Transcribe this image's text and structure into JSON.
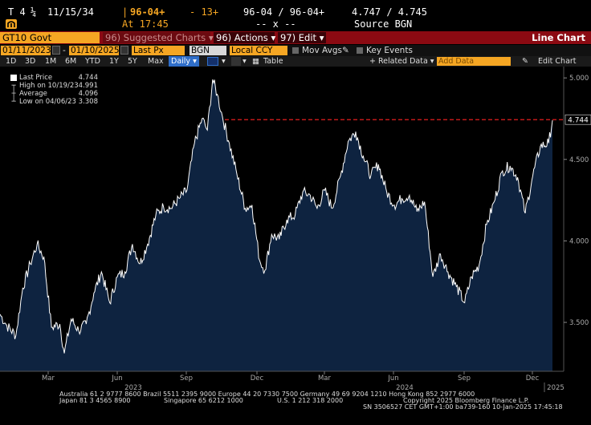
{
  "quote": {
    "row1": {
      "t": "T 4",
      "coupon_frac": "¼",
      "maturity": "11/15/34",
      "price": "96-04+",
      "change": "- 13+",
      "bid_ask": "96-04 / 96-04+",
      "yields": "4.747 / 4.745"
    },
    "row2": {
      "at": "At 17:45",
      "bid_ask_size": "-- x --",
      "source": "Source BGN"
    }
  },
  "toolbar": {
    "ticker": "GT10 Govt",
    "suggested": "96) Suggested Charts",
    "actions": "96) Actions",
    "edit": "97) Edit",
    "title": "Line Chart"
  },
  "daterow": {
    "start": "01/11/2023",
    "end": "01/10/2025",
    "field": "Last Px",
    "source": "BGN",
    "currency": "Local CCY",
    "mov_avgs": "Mov Avgs",
    "key_events": "Key Events"
  },
  "periodrow": {
    "periods": [
      "1D",
      "3D",
      "1M",
      "6M",
      "YTD",
      "1Y",
      "5Y",
      "Max"
    ],
    "frequency": "Daily",
    "table": "Table",
    "related": "+ Related Data",
    "add_placeholder": "Add Data",
    "edit_chart": "Edit Chart"
  },
  "legend": {
    "items": [
      {
        "key": "Last Price",
        "value": "4.744"
      },
      {
        "key": "High on 10/19/23",
        "value": "4.991"
      },
      {
        "key": "Average",
        "value": "4.096"
      },
      {
        "key": "Low on 04/06/23",
        "value": "3.308"
      }
    ]
  },
  "colors": {
    "fill": "#0e2340",
    "line": "#ffffff",
    "last_line": "#ff2222",
    "amber": "#f5a623",
    "toolbar": "#8b0a12"
  },
  "chart_data": {
    "type": "area",
    "ylim": [
      3.2,
      5.05
    ],
    "y_ticks": [
      "5.000",
      "4.500",
      "4.000",
      "3.500"
    ],
    "last_value": 4.744,
    "last_label": "4.744",
    "month_labels": [
      "Mar",
      "Jun",
      "Sep",
      "Dec",
      "Mar",
      "Jun",
      "Sep",
      "Dec"
    ],
    "year_labels": [
      "2023",
      "2024",
      "2025"
    ],
    "x_start": "2023-01-11",
    "x_end": "2025-01-10",
    "series": [
      {
        "x": [
          "2023-01-11",
          "2023-01-20",
          "2023-02-01",
          "2023-02-10",
          "2023-02-20",
          "2023-03-01",
          "2023-03-10",
          "2023-03-20",
          "2023-03-31",
          "2023-04-06",
          "2023-04-15",
          "2023-04-25",
          "2023-05-05",
          "2023-05-15",
          "2023-05-25",
          "2023-06-05",
          "2023-06-15",
          "2023-06-25",
          "2023-07-05",
          "2023-07-15",
          "2023-07-25",
          "2023-08-05",
          "2023-08-15",
          "2023-08-25",
          "2023-09-05",
          "2023-09-15",
          "2023-09-25",
          "2023-10-05",
          "2023-10-12",
          "2023-10-19",
          "2023-10-25",
          "2023-11-01",
          "2023-11-10",
          "2023-11-20",
          "2023-12-01",
          "2023-12-10",
          "2023-12-20",
          "2023-12-27",
          "2024-01-05",
          "2024-01-15",
          "2024-01-25",
          "2024-02-05",
          "2024-02-15",
          "2024-02-25",
          "2024-03-05",
          "2024-03-15",
          "2024-03-25",
          "2024-04-05",
          "2024-04-15",
          "2024-04-25",
          "2024-05-05",
          "2024-05-15",
          "2024-05-25",
          "2024-06-05",
          "2024-06-15",
          "2024-06-25",
          "2024-07-05",
          "2024-07-15",
          "2024-07-25",
          "2024-08-05",
          "2024-08-15",
          "2024-08-25",
          "2024-09-05",
          "2024-09-16",
          "2024-09-25",
          "2024-10-05",
          "2024-10-15",
          "2024-10-25",
          "2024-11-05",
          "2024-11-15",
          "2024-11-25",
          "2024-12-05",
          "2024-12-15",
          "2024-12-25",
          "2025-01-05",
          "2025-01-10"
        ],
        "y": [
          3.55,
          3.48,
          3.42,
          3.71,
          3.86,
          3.98,
          3.9,
          3.47,
          3.49,
          3.31,
          3.52,
          3.45,
          3.49,
          3.68,
          3.81,
          3.62,
          3.78,
          3.81,
          3.98,
          3.86,
          3.98,
          4.16,
          4.21,
          4.2,
          4.26,
          4.31,
          4.6,
          4.75,
          4.68,
          4.99,
          4.9,
          4.76,
          4.6,
          4.41,
          4.2,
          4.22,
          3.88,
          3.82,
          4.04,
          4.01,
          4.13,
          4.16,
          4.3,
          4.28,
          4.2,
          4.31,
          4.2,
          4.4,
          4.61,
          4.67,
          4.52,
          4.4,
          4.47,
          4.3,
          4.22,
          4.26,
          4.28,
          4.18,
          4.24,
          3.78,
          3.92,
          3.81,
          3.72,
          3.62,
          3.78,
          3.85,
          4.1,
          4.24,
          4.43,
          4.46,
          4.39,
          4.17,
          4.4,
          4.58,
          4.6,
          4.74
        ]
      }
    ]
  },
  "footer": {
    "line1": "Australia 61 2 9777 8600 Brazil 5511 2395 9000 Europe 44 20 7330 7500 Germany 49 69 9204 1210 Hong Kong 852 2977 6000",
    "line2a": "Japan 81 3 4565 8900",
    "line2b": "Singapore 65 6212 1000",
    "line2c": "U.S. 1 212 318 2000",
    "line2d": "Copyright 2025 Bloomberg Finance L.P.",
    "line3": "SN 3506527 CET  GMT+1:00 ba739-160 10-Jan-2025 17:45:18"
  }
}
